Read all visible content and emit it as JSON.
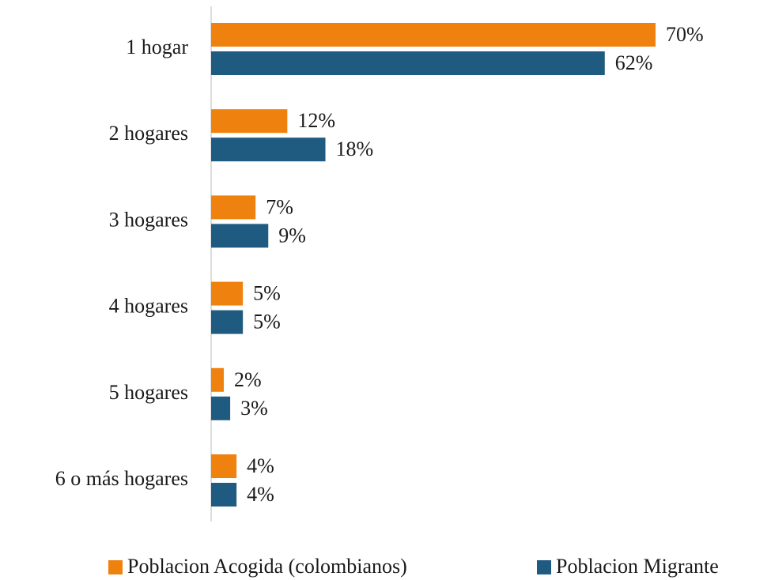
{
  "chart_data": {
    "type": "bar",
    "orientation": "horizontal",
    "categories": [
      "1 hogar",
      "2 hogares",
      "3 hogares",
      "4 hogares",
      "5 hogares",
      "6 o más hogares"
    ],
    "series": [
      {
        "name": "Poblacion Acogida (colombianos)",
        "color": "#ef820e",
        "values": [
          70,
          12,
          7,
          5,
          2,
          4
        ],
        "value_labels": [
          "70%",
          "12%",
          "7%",
          "5%",
          "2%",
          "4%"
        ]
      },
      {
        "name": "Poblacion Migrante",
        "color": "#1f5a80",
        "values": [
          62,
          18,
          9,
          5,
          3,
          4
        ],
        "value_labels": [
          "62%",
          "18%",
          "9%",
          "5%",
          "3%",
          "4%"
        ]
      }
    ],
    "legend": "bottom"
  }
}
